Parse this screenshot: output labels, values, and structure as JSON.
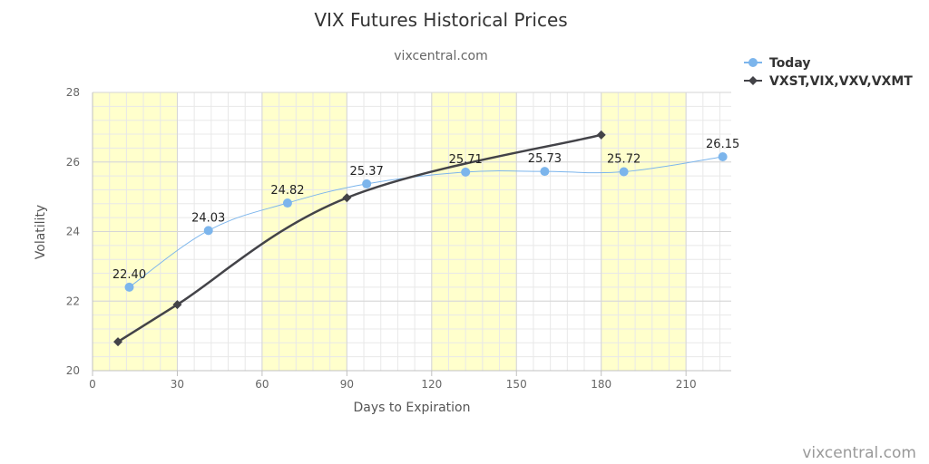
{
  "chart_data": {
    "type": "line",
    "title": "VIX Futures Historical Prices",
    "subtitle": "vixcentral.com",
    "xlabel": "Days to Expiration",
    "ylabel": "Volatility",
    "xlim": [
      0,
      226
    ],
    "ylim": [
      20,
      28
    ],
    "xticks": [
      0,
      30,
      60,
      90,
      120,
      150,
      180,
      210
    ],
    "yticks": [
      20,
      22,
      24,
      26,
      28
    ],
    "grid": true,
    "legend_position": "top-right",
    "series": [
      {
        "name": "Today",
        "color": "#7cb5ec",
        "marker": "circle",
        "show_labels": true,
        "points": [
          {
            "x": 13,
            "y": 22.4,
            "label": "22.40"
          },
          {
            "x": 41,
            "y": 24.03,
            "label": "24.03"
          },
          {
            "x": 69,
            "y": 24.82,
            "label": "24.82"
          },
          {
            "x": 97,
            "y": 25.37,
            "label": "25.37"
          },
          {
            "x": 132,
            "y": 25.71,
            "label": "25.71"
          },
          {
            "x": 160,
            "y": 25.73,
            "label": "25.73"
          },
          {
            "x": 188,
            "y": 25.72,
            "label": "25.72"
          },
          {
            "x": 223,
            "y": 26.15,
            "label": "26.15"
          }
        ]
      },
      {
        "name": "VXST,VIX,VXV,VXMT",
        "color": "#434348",
        "marker": "diamond",
        "show_labels": false,
        "points": [
          {
            "x": 9,
            "y": 20.83
          },
          {
            "x": 30,
            "y": 21.9
          },
          {
            "x": 90,
            "y": 24.97
          },
          {
            "x": 180,
            "y": 26.78
          }
        ]
      }
    ],
    "bands": [
      {
        "from": 0,
        "to": 30,
        "color": "#ffffcc"
      },
      {
        "from": 60,
        "to": 90,
        "color": "#ffffcc"
      },
      {
        "from": 120,
        "to": 150,
        "color": "#ffffcc"
      },
      {
        "from": 180,
        "to": 210,
        "color": "#ffffcc"
      }
    ]
  },
  "credit": "vixcentral.com"
}
